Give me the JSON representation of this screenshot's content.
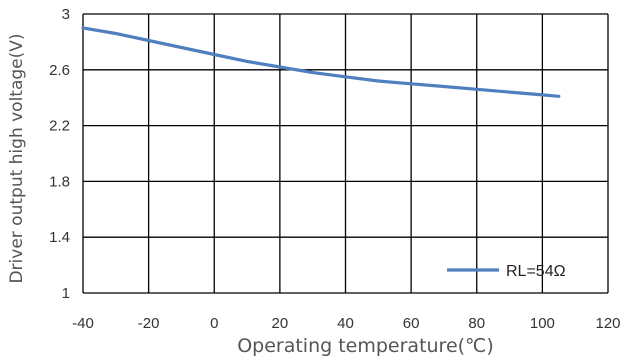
{
  "chart_data": {
    "type": "line",
    "xlabel": "Operating temperature(℃)",
    "ylabel": "Driver output high voltage(V)",
    "xlim": [
      -40,
      120
    ],
    "ylim": [
      1,
      3
    ],
    "x_ticks": [
      "-40",
      "-20",
      "0",
      "20",
      "40",
      "60",
      "80",
      "100",
      "120"
    ],
    "y_ticks": [
      "1",
      "1.4",
      "1.8",
      "2.2",
      "2.6",
      "3"
    ],
    "grid": true,
    "legend_position": "bottom-right",
    "series": [
      {
        "name": "RL=54Ω",
        "color": "#4f7fbf",
        "x": [
          -40,
          -30,
          -20,
          -10,
          0,
          10,
          20,
          30,
          40,
          50,
          60,
          70,
          80,
          90,
          100,
          105
        ],
        "y": [
          2.9,
          2.86,
          2.81,
          2.76,
          2.71,
          2.66,
          2.62,
          2.58,
          2.55,
          2.52,
          2.5,
          2.48,
          2.46,
          2.44,
          2.42,
          2.41
        ]
      }
    ]
  }
}
